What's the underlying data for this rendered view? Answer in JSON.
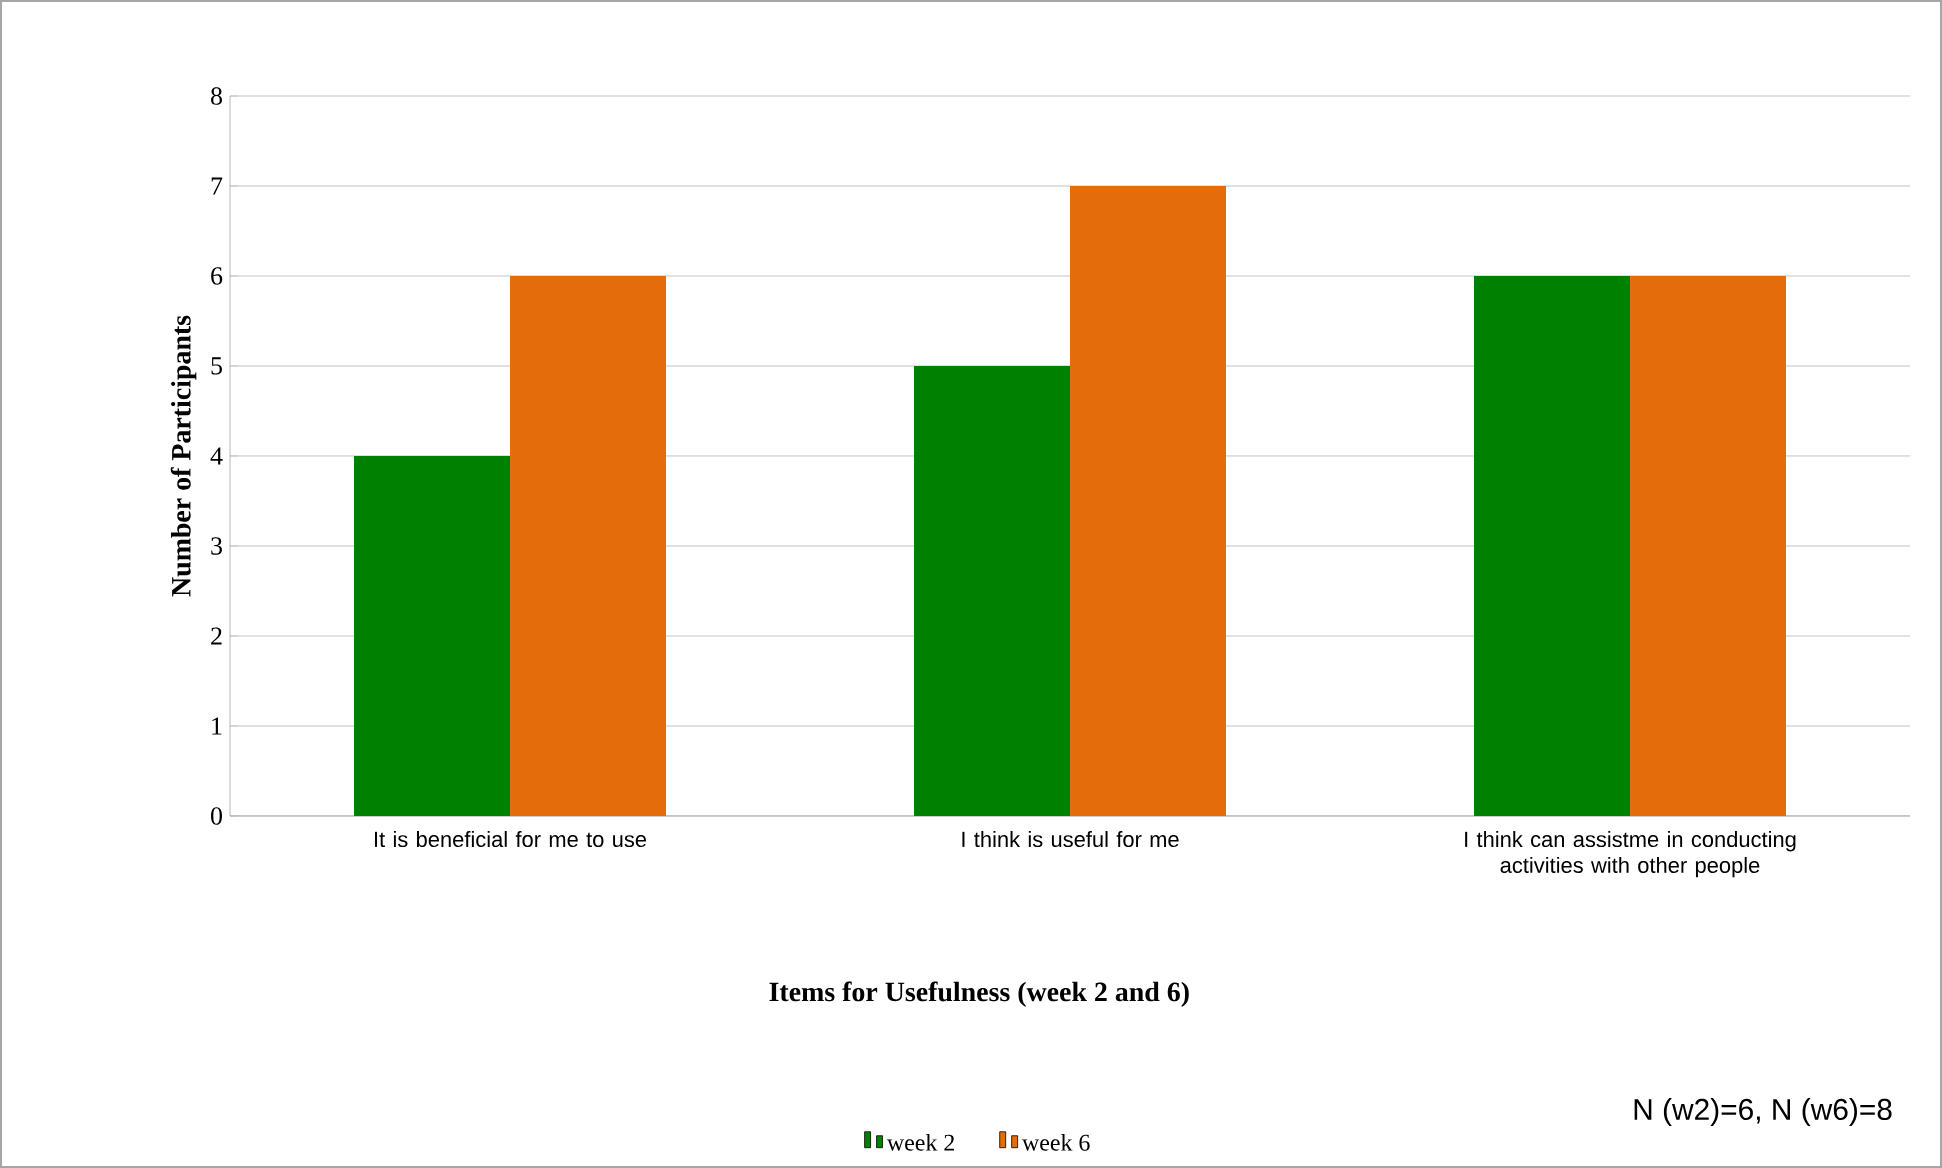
{
  "chart_data": {
    "type": "bar",
    "xlabel": "Items for Usefulness (week 2 and 6)",
    "ylabel": "Number of Participants",
    "categories": [
      "It is beneficial for me to use",
      "I think is useful for me",
      "I think can assistme in conducting activities with other people"
    ],
    "series": [
      {
        "name": "week 2",
        "color": "#008000",
        "values": [
          4,
          5,
          6
        ]
      },
      {
        "name": "week 6",
        "color": "#e46c0a",
        "values": [
          6,
          7,
          6
        ]
      }
    ],
    "ylim": [
      0,
      8
    ],
    "yticks": [
      0,
      1,
      2,
      3,
      4,
      5,
      6,
      7,
      8
    ],
    "grid": "y",
    "legend": "bottom",
    "annotations": [
      "N (w2)=6, N (w6)=8"
    ]
  }
}
